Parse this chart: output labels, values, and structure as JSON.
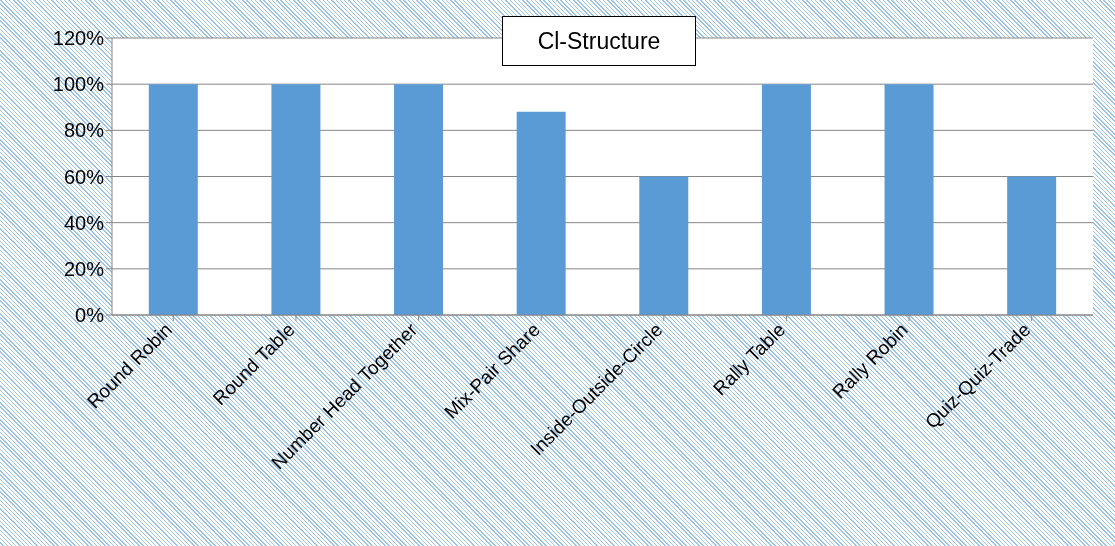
{
  "chart_data": {
    "type": "bar",
    "title": "Cl-Structure",
    "categories": [
      "Round Robin",
      "Round Table",
      "Number Head Together",
      "Mix-Pair Share",
      "Inside-Outside-Circle",
      "Rally Table",
      "Rally Robin",
      "Quiz-Quiz-Trade"
    ],
    "values": [
      100,
      100,
      100,
      88,
      60,
      100,
      100,
      60
    ],
    "color": "#5b9bd5",
    "ylim": [
      0,
      120
    ],
    "yticks": [
      {
        "value": 0,
        "label": "0%"
      },
      {
        "value": 20,
        "label": "20%"
      },
      {
        "value": 40,
        "label": "40%"
      },
      {
        "value": 60,
        "label": "60%"
      },
      {
        "value": 80,
        "label": "80%"
      },
      {
        "value": 100,
        "label": "100%"
      },
      {
        "value": 120,
        "label": "120%"
      }
    ],
    "grid": "y",
    "legend": false
  }
}
